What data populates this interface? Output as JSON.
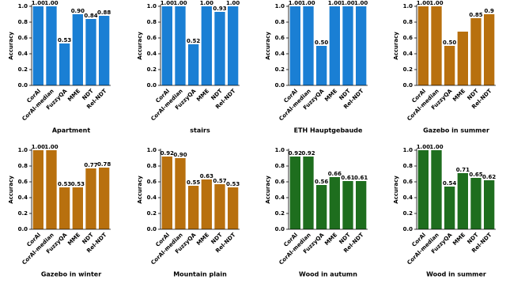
{
  "chart_data": [
    {
      "type": "bar",
      "title": "Apartment",
      "ylabel": "Accuracy",
      "categories": [
        "CorAl",
        "CorAl-median",
        "FuzzyQA",
        "MME",
        "NDT",
        "Rel-NDT"
      ],
      "values": [
        1.0,
        1.0,
        0.53,
        0.9,
        0.84,
        0.88
      ],
      "value_labels": [
        "1.00",
        "1.00",
        "0.53",
        "0.90",
        "0.84",
        "0.88"
      ],
      "color": "#1a7fd4",
      "ylim": [
        0,
        1
      ],
      "yticks": [
        {
          "value": 0,
          "label": "0.0"
        },
        {
          "value": 0.2,
          "label": "0.2"
        },
        {
          "value": 0.4,
          "label": "0.4"
        },
        {
          "value": 0.6,
          "label": "0.6"
        },
        {
          "value": 0.8,
          "label": "0.8"
        },
        {
          "value": 1,
          "label": "1.0"
        }
      ]
    },
    {
      "type": "bar",
      "title": "stairs",
      "ylabel": "Accuracy",
      "categories": [
        "CorAl",
        "CorAl-median",
        "FuzzyQA",
        "MME",
        "NDT",
        "Rel-NDT"
      ],
      "values": [
        1.0,
        1.0,
        0.52,
        1.0,
        0.93,
        1.0
      ],
      "value_labels": [
        "1.00",
        "1.00",
        "0.52",
        "1.00",
        "0.93",
        "1.00"
      ],
      "color": "#1a7fd4",
      "ylim": [
        0,
        1
      ],
      "yticks": [
        {
          "value": 0,
          "label": "0.0"
        },
        {
          "value": 0.2,
          "label": "0.2"
        },
        {
          "value": 0.4,
          "label": "0.4"
        },
        {
          "value": 0.6,
          "label": "0.6"
        },
        {
          "value": 0.8,
          "label": "0.8"
        },
        {
          "value": 1,
          "label": "1.0"
        }
      ]
    },
    {
      "type": "bar",
      "title": "ETH Hauptgebaude",
      "ylabel": "Accuracy",
      "categories": [
        "CorAl",
        "CorAl-median",
        "FuzzyQA",
        "MME",
        "NDT",
        "Rel-NDT"
      ],
      "values": [
        1.0,
        1.0,
        0.5,
        1.0,
        1.0,
        1.0
      ],
      "value_labels": [
        "1.00",
        "1.00",
        "0.50",
        "1.00",
        "1.00",
        "1.00"
      ],
      "color": "#1a7fd4",
      "ylim": [
        0,
        1
      ],
      "yticks": [
        {
          "value": 0,
          "label": "0.0"
        },
        {
          "value": 0.2,
          "label": "0.2"
        },
        {
          "value": 0.4,
          "label": "0.4"
        },
        {
          "value": 0.6,
          "label": "0.6"
        },
        {
          "value": 0.8,
          "label": "0.8"
        },
        {
          "value": 1,
          "label": "1.0"
        }
      ]
    },
    {
      "type": "bar",
      "title": "Gazebo in summer",
      "ylabel": "Accuracy",
      "categories": [
        "CorAl",
        "CorAl-median",
        "FuzzyQA",
        "MME",
        "NDT",
        "Rel-NDT"
      ],
      "values": [
        1.0,
        1.0,
        0.5,
        0.68,
        0.85,
        0.9
      ],
      "value_labels": [
        "1.00",
        "1.00",
        "0.50",
        null,
        "0.85",
        "0.9"
      ],
      "color": "#b8700e",
      "ylim": [
        0,
        1
      ],
      "yticks": [
        {
          "value": 0,
          "label": "0.0"
        },
        {
          "value": 0.2,
          "label": "0.2"
        },
        {
          "value": 0.4,
          "label": "0.4"
        },
        {
          "value": 0.6,
          "label": "0.6"
        },
        {
          "value": 0.8,
          "label": "0.8"
        },
        {
          "value": 1,
          "label": "1.0"
        }
      ]
    },
    {
      "type": "bar",
      "title": "Gazebo in winter",
      "ylabel": "Accuracy",
      "categories": [
        "CorAl",
        "CorAl-median",
        "FuzzyQA",
        "MME",
        "NDT",
        "Rel-NDT"
      ],
      "values": [
        1.0,
        1.0,
        0.53,
        0.53,
        0.77,
        0.78
      ],
      "value_labels": [
        "1.00",
        "1.00",
        "0.53",
        "0.53",
        "0.77",
        "0.78"
      ],
      "color": "#b8700e",
      "ylim": [
        0,
        1
      ],
      "yticks": [
        {
          "value": 0,
          "label": "0.0"
        },
        {
          "value": 0.2,
          "label": "0.2"
        },
        {
          "value": 0.4,
          "label": "0.4"
        },
        {
          "value": 0.6,
          "label": "0.6"
        },
        {
          "value": 0.8,
          "label": "0.8"
        },
        {
          "value": 1,
          "label": "1.0"
        }
      ]
    },
    {
      "type": "bar",
      "title": "Mountain plain",
      "ylabel": "Accuracy",
      "categories": [
        "CorAl",
        "CorAl-median",
        "FuzzyQA",
        "MME",
        "NDT",
        "Rel-NDT"
      ],
      "values": [
        0.92,
        0.9,
        0.55,
        0.63,
        0.57,
        0.53
      ],
      "value_labels": [
        "0.92",
        "0.90",
        "0.55",
        "0.63",
        "0.57",
        "0.53"
      ],
      "color": "#b8700e",
      "ylim": [
        0,
        1
      ],
      "yticks": [
        {
          "value": 0,
          "label": "0.0"
        },
        {
          "value": 0.2,
          "label": "0.2"
        },
        {
          "value": 0.4,
          "label": "0.4"
        },
        {
          "value": 0.6,
          "label": "0.6"
        },
        {
          "value": 0.8,
          "label": "0.8"
        },
        {
          "value": 1,
          "label": "1.0"
        }
      ]
    },
    {
      "type": "bar",
      "title": "Wood in autumn",
      "ylabel": "Accuracy",
      "categories": [
        "CorAl",
        "CorAl-median",
        "FuzzyQA",
        "MME",
        "NDT",
        "Rel-NDT"
      ],
      "values": [
        0.92,
        0.92,
        0.56,
        0.66,
        0.61,
        0.61
      ],
      "value_labels": [
        "0.92",
        "0.92",
        "0.56",
        "0.66",
        "0.61",
        "0.61"
      ],
      "color": "#1e6e1e",
      "ylim": [
        0,
        1
      ],
      "yticks": [
        {
          "value": 0,
          "label": "0.0"
        },
        {
          "value": 0.2,
          "label": "0.2"
        },
        {
          "value": 0.4,
          "label": "0.4"
        },
        {
          "value": 0.6,
          "label": "0.6"
        },
        {
          "value": 0.8,
          "label": "0.8"
        },
        {
          "value": 1,
          "label": "1.0"
        }
      ]
    },
    {
      "type": "bar",
      "title": "Wood in summer",
      "ylabel": "Accuracy",
      "categories": [
        "CorAl",
        "CorAl-median",
        "FuzzyQA",
        "MME",
        "NDT",
        "Rel-NDT"
      ],
      "values": [
        1.0,
        1.0,
        0.54,
        0.71,
        0.65,
        0.62
      ],
      "value_labels": [
        "1.00",
        "1.00",
        "0.54",
        "0.71",
        "0.65",
        "0.62"
      ],
      "color": "#1e6e1e",
      "ylim": [
        0,
        1
      ],
      "yticks": [
        {
          "value": 0,
          "label": "0.0"
        },
        {
          "value": 0.2,
          "label": "0.2"
        },
        {
          "value": 0.4,
          "label": "0.4"
        },
        {
          "value": 0.6,
          "label": "0.6"
        },
        {
          "value": 0.8,
          "label": "0.8"
        },
        {
          "value": 1,
          "label": "1.0"
        }
      ]
    }
  ]
}
